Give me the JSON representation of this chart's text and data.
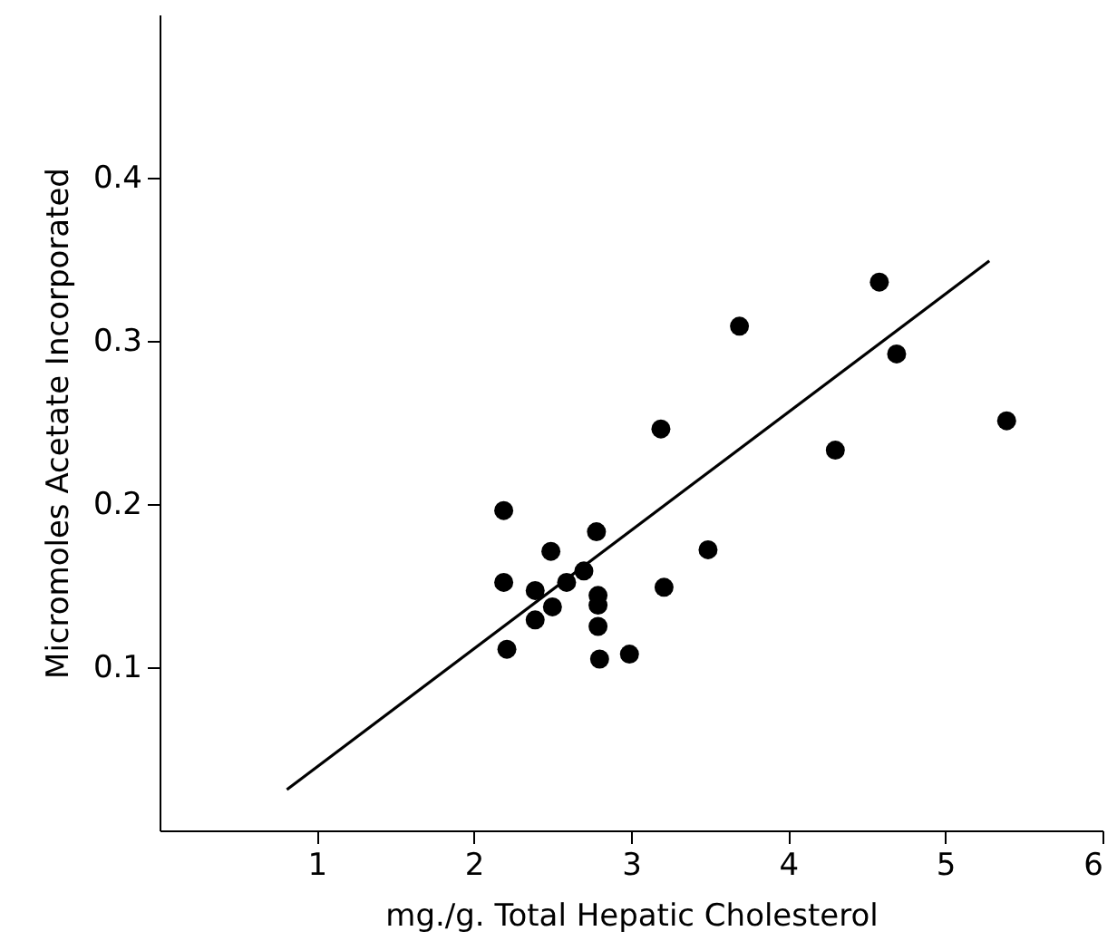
{
  "chart_data": {
    "type": "scatter",
    "xlabel": "mg./g. Total Hepatic Cholesterol",
    "ylabel": "Micromoles Acetate Incorporated",
    "xlim": [
      0,
      6
    ],
    "xticks": [
      1,
      2,
      3,
      4,
      5,
      6
    ],
    "ylim": [
      0,
      0.5
    ],
    "yticks": [
      0.1,
      0.2,
      0.3,
      0.4
    ],
    "grid": false,
    "marker": "circle",
    "series": [
      {
        "color": "#000000",
        "x": [
          2.19,
          2.19,
          2.21,
          2.49,
          2.39,
          2.39,
          2.5,
          2.59,
          2.7,
          2.78,
          2.79,
          2.79,
          2.79,
          2.8,
          2.99,
          3.19,
          3.21,
          3.49,
          3.69,
          4.3,
          4.58,
          4.69,
          5.39
        ],
        "values": [
          0.196,
          0.152,
          0.111,
          0.171,
          0.147,
          0.129,
          0.137,
          0.152,
          0.159,
          0.183,
          0.144,
          0.138,
          0.125,
          0.105,
          0.108,
          0.246,
          0.149,
          0.172,
          0.309,
          0.233,
          0.336,
          0.292,
          0.251
        ]
      },
      {
        "type": "line",
        "color": "#000000",
        "x": [
          0.81,
          5.28
        ],
        "values": [
          0.025,
          0.349
        ],
        "line_style": "solid",
        "marker": "none"
      }
    ]
  }
}
